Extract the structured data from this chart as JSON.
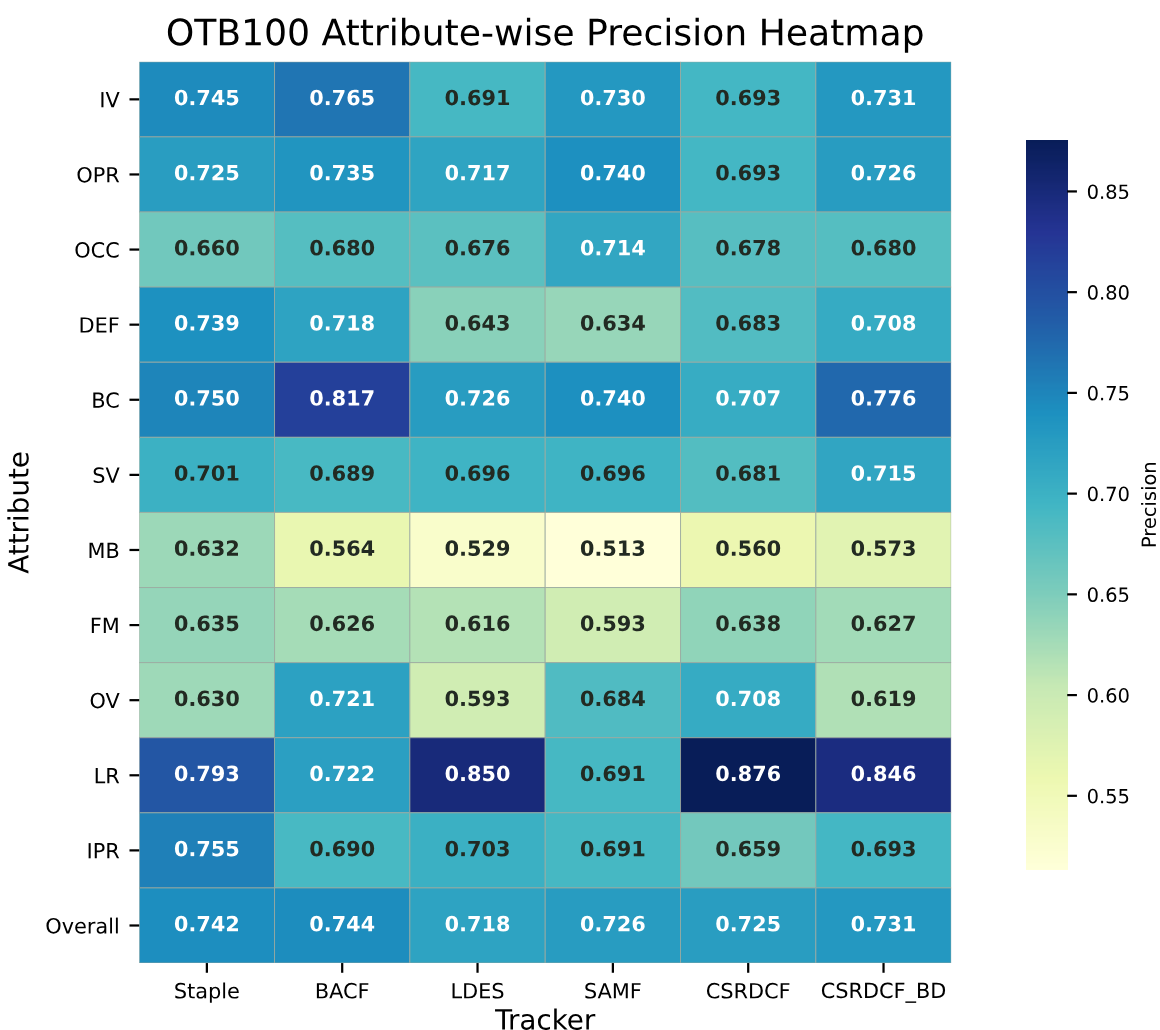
{
  "chart_data": {
    "type": "heatmap",
    "title": "OTB100 Attribute-wise Precision Heatmap",
    "xlabel": "Tracker",
    "ylabel": "Attribute",
    "clabel": "Precision",
    "categories": [
      "Staple",
      "BACF",
      "LDES",
      "SAMF",
      "CSRDCF",
      "CSRDCF_BD"
    ],
    "y_categories": [
      "IV",
      "OPR",
      "OCC",
      "DEF",
      "BC",
      "SV",
      "MB",
      "FM",
      "OV",
      "LR",
      "IPR",
      "Overall"
    ],
    "cells": [
      [
        0.745,
        0.765,
        0.691,
        0.73,
        0.693,
        0.731
      ],
      [
        0.725,
        0.735,
        0.717,
        0.74,
        0.693,
        0.726
      ],
      [
        0.66,
        0.68,
        0.676,
        0.714,
        0.678,
        0.68
      ],
      [
        0.739,
        0.718,
        0.643,
        0.634,
        0.683,
        0.708
      ],
      [
        0.75,
        0.817,
        0.726,
        0.74,
        0.707,
        0.776
      ],
      [
        0.701,
        0.689,
        0.696,
        0.696,
        0.681,
        0.715
      ],
      [
        0.632,
        0.564,
        0.529,
        0.513,
        0.56,
        0.573
      ],
      [
        0.635,
        0.626,
        0.616,
        0.593,
        0.638,
        0.627
      ],
      [
        0.63,
        0.721,
        0.593,
        0.684,
        0.708,
        0.619
      ],
      [
        0.793,
        0.722,
        0.85,
        0.691,
        0.876,
        0.846
      ],
      [
        0.755,
        0.69,
        0.703,
        0.691,
        0.659,
        0.693
      ],
      [
        0.742,
        0.744,
        0.718,
        0.726,
        0.725,
        0.731
      ]
    ],
    "data_labels": true,
    "cell_labels": [
      [
        "0.745",
        "0.765",
        "0.691",
        "0.730",
        "0.693",
        "0.731"
      ],
      [
        "0.725",
        "0.735",
        "0.717",
        "0.740",
        "0.693",
        "0.726"
      ],
      [
        "0.660",
        "0.680",
        "0.676",
        "0.714",
        "0.678",
        "0.680"
      ],
      [
        "0.739",
        "0.718",
        "0.643",
        "0.634",
        "0.683",
        "0.708"
      ],
      [
        "0.750",
        "0.817",
        "0.726",
        "0.740",
        "0.707",
        "0.776"
      ],
      [
        "0.701",
        "0.689",
        "0.696",
        "0.696",
        "0.681",
        "0.715"
      ],
      [
        "0.632",
        "0.564",
        "0.529",
        "0.513",
        "0.560",
        "0.573"
      ],
      [
        "0.635",
        "0.626",
        "0.616",
        "0.593",
        "0.638",
        "0.627"
      ],
      [
        "0.630",
        "0.721",
        "0.593",
        "0.684",
        "0.708",
        "0.619"
      ],
      [
        "0.793",
        "0.722",
        "0.850",
        "0.691",
        "0.876",
        "0.846"
      ],
      [
        "0.755",
        "0.690",
        "0.703",
        "0.691",
        "0.659",
        "0.693"
      ],
      [
        "0.742",
        "0.744",
        "0.718",
        "0.726",
        "0.725",
        "0.731"
      ]
    ],
    "clim": [
      0.513,
      0.876
    ],
    "cticks": [
      0.55,
      {
        "value": 0.6,
        "label": "0.60"
      },
      0.65,
      {
        "value": 0.7,
        "label": "0.70"
      },
      0.75,
      {
        "value": 0.8,
        "label": "0.80"
      },
      0.85
    ]
  }
}
